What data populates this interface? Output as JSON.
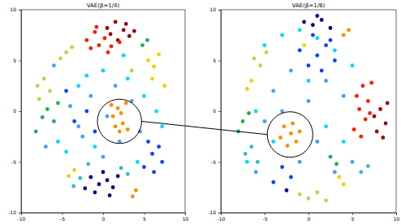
{
  "chart_data": [
    {
      "type": "scatter",
      "title": "VAE(β=1/4)",
      "xlim": [
        -10,
        10
      ],
      "xticks": [
        -10,
        -5,
        0,
        5,
        10
      ],
      "ylim": [
        -10,
        10
      ],
      "yticks": [
        -10,
        -5,
        0,
        5,
        10
      ],
      "marker": "circle",
      "highlight": {
        "x": 2,
        "y": -1,
        "r": 2.7
      },
      "series": [
        {
          "color": "#a00000",
          "x": [
            0.5,
            1.5,
            2.5,
            3.2,
            1.8,
            0.9,
            2.8,
            3.8
          ],
          "y": [
            8.2,
            8.8,
            8.0,
            7.4,
            7.0,
            7.6,
            8.6,
            7.9
          ]
        },
        {
          "color": "#ff1a00",
          "x": [
            -2,
            -1,
            -0.5,
            0.2,
            -1.5,
            1,
            2,
            -0.8,
            0.6
          ],
          "y": [
            7.0,
            7.8,
            6.5,
            7.2,
            6.2,
            6.4,
            6.8,
            8.3,
            5.8
          ]
        },
        {
          "color": "#ff8c00",
          "x": [
            1.2,
            1.8,
            2.4,
            2.0,
            1.5,
            2.8,
            2.2,
            1.0,
            3.0,
            4.0,
            3.6
          ],
          "y": [
            -0.5,
            0.3,
            -1.2,
            -2.0,
            -1.5,
            0.8,
            -0.2,
            0.6,
            -1.8,
            -7.8,
            -8.4
          ]
        },
        {
          "color": "#f0d000",
          "x": [
            5.5,
            6.2,
            6.8,
            -3.5,
            -4.2,
            7.5,
            6.0
          ],
          "y": [
            5.0,
            4.4,
            5.6,
            -5.8,
            -6.4,
            2.5,
            3.2
          ]
        },
        {
          "color": "#a8e040",
          "x": [
            -8.0,
            -7.2,
            -6.5,
            -7.8,
            -4.5,
            -5.2,
            -3.8,
            3.5
          ],
          "y": [
            2.5,
            3.2,
            2.0,
            1.2,
            5.8,
            5.2,
            6.3,
            4.0
          ]
        },
        {
          "color": "#20b050",
          "x": [
            -6.8,
            -7.4,
            -6.0,
            -5.5,
            -8.2,
            4.8,
            5.4
          ],
          "y": [
            0.2,
            -0.6,
            -1.0,
            0.8,
            -2.0,
            6.5,
            7.0
          ]
        },
        {
          "color": "#00d8ff",
          "x": [
            -3,
            -2,
            0,
            3,
            5,
            6.5,
            7.2,
            -5.5,
            -4.5,
            4.2,
            -1,
            2.5
          ],
          "y": [
            2.5,
            3.5,
            4.0,
            3.2,
            1.5,
            0.0,
            -1.5,
            -3.0,
            -4.0,
            -5.0,
            -3.5,
            5.5
          ]
        },
        {
          "color": "#40a0ff",
          "x": [
            -4,
            -3,
            -1.5,
            0.5,
            3.5,
            -6,
            -2.5,
            1.5,
            4.5,
            -7,
            0,
            2
          ],
          "y": [
            0.5,
            -1.5,
            1.5,
            -0.5,
            1.0,
            4.5,
            -2.5,
            2.5,
            -2.0,
            -3.5,
            -4.5,
            -3
          ]
        },
        {
          "color": "#1040ff",
          "x": [
            5.5,
            6.0,
            6.8,
            7.2,
            5.0,
            6.2,
            -3.5,
            -2.0,
            -1.0,
            -4.5
          ],
          "y": [
            -3.0,
            -4.2,
            -3.5,
            -5.0,
            -5.5,
            -6.0,
            -1.0,
            0.0,
            -2.0,
            2.0
          ]
        },
        {
          "color": "#00008b",
          "x": [
            -1.5,
            -0.5,
            0.5,
            1.2,
            -1.0,
            0.0,
            1.8,
            -2.2,
            0.8
          ],
          "y": [
            -6.5,
            -7.2,
            -6.8,
            -7.5,
            -8.0,
            -6.0,
            -6.4,
            -7.6,
            -8.3
          ]
        },
        {
          "color": "#30c0c0",
          "x": [
            -2.8,
            -3.6,
            -1.8,
            3.0,
            2.2
          ],
          "y": [
            -6.6,
            -7.4,
            -5.2,
            -6.2,
            -5.6
          ]
        }
      ]
    },
    {
      "type": "scatter",
      "title": "VAE(β=1/8)",
      "xlim": [
        -10,
        10
      ],
      "xticks": [
        -10,
        -5,
        0,
        5,
        10
      ],
      "ylim": [
        -10,
        10
      ],
      "yticks": [
        -10,
        -5,
        0,
        5,
        10
      ],
      "marker": "circle",
      "highlight": {
        "x": -2.1,
        "y": -2.3,
        "r": 2.6
      },
      "series": [
        {
          "color": "#a00000",
          "x": [
            7.5,
            8.2,
            8.8,
            7.8,
            8.5,
            9.0
          ],
          "y": [
            -0.5,
            0.2,
            -1.2,
            -2.0,
            -2.6,
            0.8
          ]
        },
        {
          "color": "#ff1a00",
          "x": [
            5.5,
            6.2,
            6.8,
            5.8,
            6.5,
            7.2,
            5.2,
            6.0,
            7.0
          ],
          "y": [
            1.5,
            2.5,
            1.0,
            0.2,
            -0.8,
            2.8,
            -1.8,
            -2.5,
            -0.2
          ]
        },
        {
          "color": "#ff8c00",
          "x": [
            -2.8,
            -2.0,
            -1.4,
            -2.4,
            -1.0,
            -3.2,
            -1.8,
            4.0,
            4.6
          ],
          "y": [
            -1.5,
            -2.2,
            -3.0,
            -3.4,
            -2.0,
            -2.6,
            -1.2,
            7.5,
            8.0
          ]
        },
        {
          "color": "#f0d000",
          "x": [
            -6.5,
            -7.0,
            3.5,
            4.0,
            -0.5
          ],
          "y": [
            3.0,
            2.2,
            -6.5,
            -7.2,
            6.5
          ]
        },
        {
          "color": "#a8e040",
          "x": [
            -1,
            0,
            1,
            2,
            -5.5,
            -6.2,
            -4.8
          ],
          "y": [
            -8.2,
            -8.6,
            -8.0,
            -8.8,
            4.5,
            5.2,
            5.8
          ]
        },
        {
          "color": "#20b050",
          "x": [
            -7.5,
            -8.0,
            -6.8,
            2.5,
            3.2
          ],
          "y": [
            -1,
            -2,
            -0.2,
            -4.5,
            -5.2
          ]
        },
        {
          "color": "#00d8ff",
          "x": [
            -5,
            -3,
            -1,
            1,
            3,
            5,
            -6,
            -4,
            0,
            2,
            4,
            -7
          ],
          "y": [
            6.5,
            7.5,
            8,
            7.2,
            6,
            4.5,
            0,
            -3,
            3,
            -1.5,
            -3,
            -5
          ]
        },
        {
          "color": "#40a0ff",
          "x": [
            -4,
            -2,
            0,
            2,
            4,
            -5,
            -3,
            1,
            3,
            -1,
            -6,
            5
          ],
          "y": [
            2,
            4,
            1,
            3,
            1.5,
            -1,
            0,
            -3,
            -6,
            -5,
            -6,
            -5
          ]
        },
        {
          "color": "#1040ff",
          "x": [
            0,
            1,
            2,
            3,
            -1,
            0.5,
            1.5,
            2.5,
            -3,
            -2,
            -4
          ],
          "y": [
            4.5,
            5.5,
            6.5,
            5,
            6,
            7.5,
            4,
            7,
            -5.5,
            -6.5,
            -7
          ]
        },
        {
          "color": "#00008b",
          "x": [
            0.5,
            1.5,
            2.5,
            -0.5,
            1,
            -2.5
          ],
          "y": [
            8.5,
            9,
            8.2,
            8.8,
            9.4,
            -7.8
          ]
        },
        {
          "color": "#30c0c0",
          "x": [
            -6.5,
            -7.2,
            -5.8,
            6.0,
            6.8
          ],
          "y": [
            -3.5,
            -4.2,
            -5.0,
            -6.0,
            -5.4
          ]
        }
      ]
    }
  ]
}
